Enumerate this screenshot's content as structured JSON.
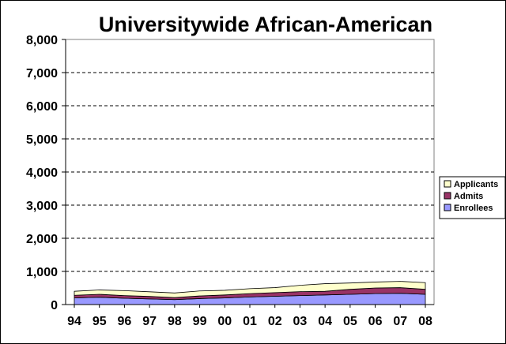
{
  "chart_data": {
    "type": "area",
    "stacked": true,
    "title": "Universitywide African-American",
    "xlabel": "",
    "ylabel": "",
    "categories": [
      "94",
      "95",
      "96",
      "97",
      "98",
      "99",
      "00",
      "01",
      "02",
      "03",
      "04",
      "05",
      "06",
      "07",
      "08"
    ],
    "y_tick_labels": [
      "0",
      "1,000",
      "2,000",
      "3,000",
      "4,000",
      "5,000",
      "6,000",
      "7,000",
      "8,000"
    ],
    "ylim": [
      0,
      8000
    ],
    "grid": "horizontal-dashed",
    "legend_position": "right",
    "series": [
      {
        "name": "Enrollees",
        "color": "#9999ff",
        "values": [
          200,
          220,
          190,
          170,
          150,
          180,
          200,
          230,
          250,
          270,
          290,
          310,
          330,
          340,
          310
        ]
      },
      {
        "name": "Admits",
        "color": "#993366",
        "values": [
          80,
          90,
          80,
          75,
          60,
          80,
          90,
          100,
          110,
          120,
          110,
          150,
          170,
          170,
          150
        ]
      },
      {
        "name": "Applicants",
        "color": "#ffffcc",
        "values": [
          120,
          130,
          150,
          140,
          140,
          150,
          140,
          150,
          150,
          190,
          230,
          190,
          180,
          190,
          200
        ]
      }
    ]
  }
}
